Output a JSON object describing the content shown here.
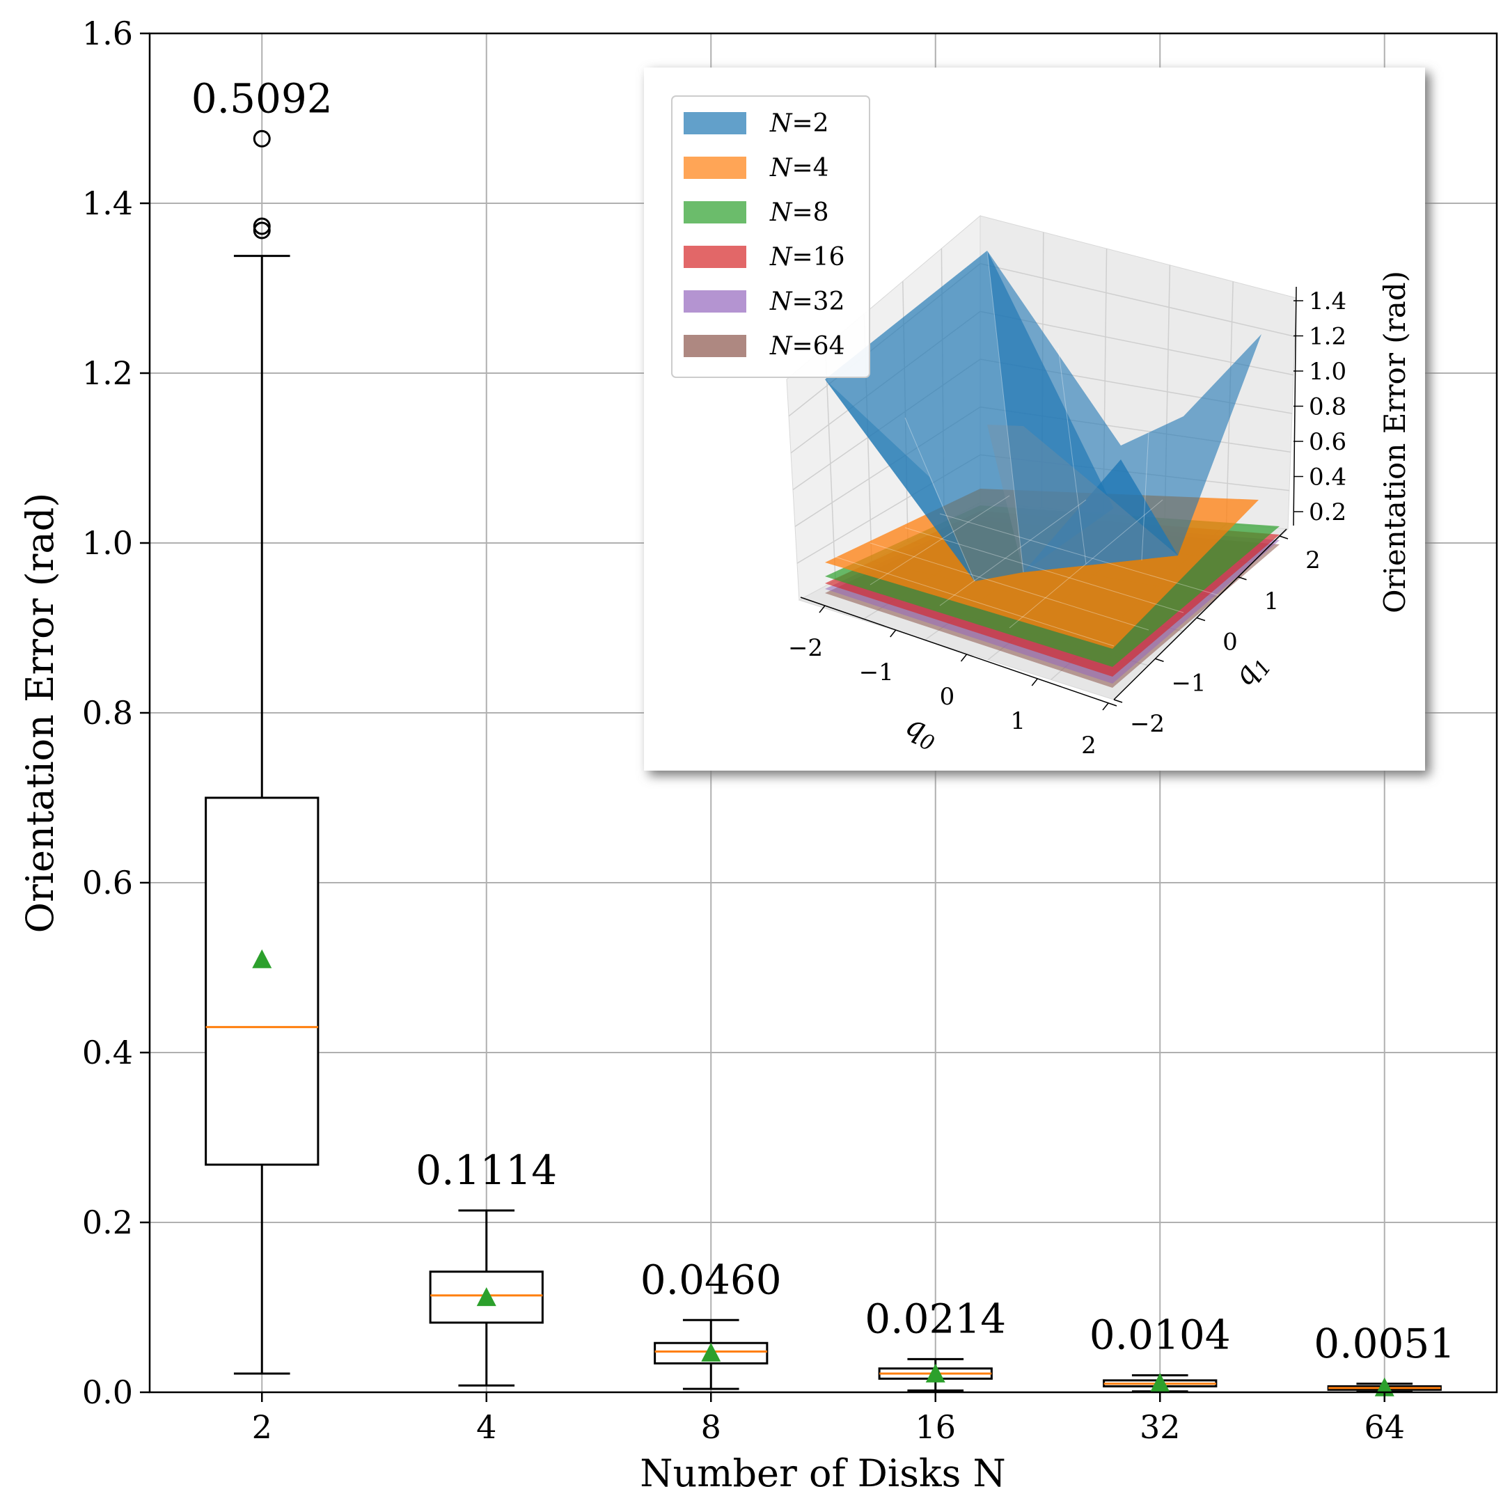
{
  "chart_data": {
    "type": "box",
    "xlabel": "Number of Disks N",
    "ylabel": "Orientation Error (rad)",
    "ylim": [
      0,
      1.6
    ],
    "yticks": [
      "0.0",
      "0.2",
      "0.4",
      "0.6",
      "0.8",
      "1.0",
      "1.2",
      "1.4",
      "1.6"
    ],
    "categories": [
      "2",
      "4",
      "8",
      "16",
      "32",
      "64"
    ],
    "grid": true,
    "boxes": [
      {
        "category": "2",
        "whisker_low": 0.022,
        "q1": 0.268,
        "median": 0.43,
        "q3": 0.7,
        "whisker_high": 1.338,
        "mean": 0.5092,
        "mean_label": "0.5092",
        "outliers": [
          1.368,
          1.373,
          1.476
        ]
      },
      {
        "category": "4",
        "whisker_low": 0.008,
        "q1": 0.082,
        "median": 0.114,
        "q3": 0.142,
        "whisker_high": 0.214,
        "mean": 0.1114,
        "mean_label": "0.1114",
        "outliers": []
      },
      {
        "category": "8",
        "whisker_low": 0.004,
        "q1": 0.034,
        "median": 0.048,
        "q3": 0.058,
        "whisker_high": 0.085,
        "mean": 0.046,
        "mean_label": "0.0460",
        "outliers": []
      },
      {
        "category": "16",
        "whisker_low": 0.002,
        "q1": 0.016,
        "median": 0.022,
        "q3": 0.028,
        "whisker_high": 0.039,
        "mean": 0.0214,
        "mean_label": "0.0214",
        "outliers": []
      },
      {
        "category": "32",
        "whisker_low": 0.001,
        "q1": 0.007,
        "median": 0.01,
        "q3": 0.014,
        "whisker_high": 0.02,
        "mean": 0.0104,
        "mean_label": "0.0104",
        "outliers": []
      },
      {
        "category": "64",
        "whisker_low": 0.0005,
        "q1": 0.003,
        "median": 0.005,
        "q3": 0.007,
        "whisker_high": 0.01,
        "mean": 0.0051,
        "mean_label": "0.0051",
        "outliers": []
      }
    ],
    "colors": {
      "box": "#000000",
      "median": "#ff7f0e",
      "mean_marker": "#2ca02c",
      "grid": "#b0b0b0"
    },
    "inset": {
      "type": "surface3d",
      "xlabel": "q0",
      "ylabel": "q1",
      "zlabel": "Orientation Error (rad)",
      "xticks": [
        "−2",
        "−1",
        "0",
        "1",
        "2"
      ],
      "yticks": [
        "−2",
        "−1",
        "0",
        "1",
        "2"
      ],
      "zticks": [
        "0.2",
        "0.4",
        "0.6",
        "0.8",
        "1.0",
        "1.2",
        "1.4"
      ],
      "legend_position": "upper-left",
      "series": [
        {
          "name": "N=2",
          "color": "#1f77b4"
        },
        {
          "name": "N=4",
          "color": "#ff7f0e"
        },
        {
          "name": "N=8",
          "color": "#2ca02c"
        },
        {
          "name": "N=16",
          "color": "#d62728"
        },
        {
          "name": "N=32",
          "color": "#9467bd"
        },
        {
          "name": "N=64",
          "color": "#8c564b"
        }
      ]
    }
  }
}
